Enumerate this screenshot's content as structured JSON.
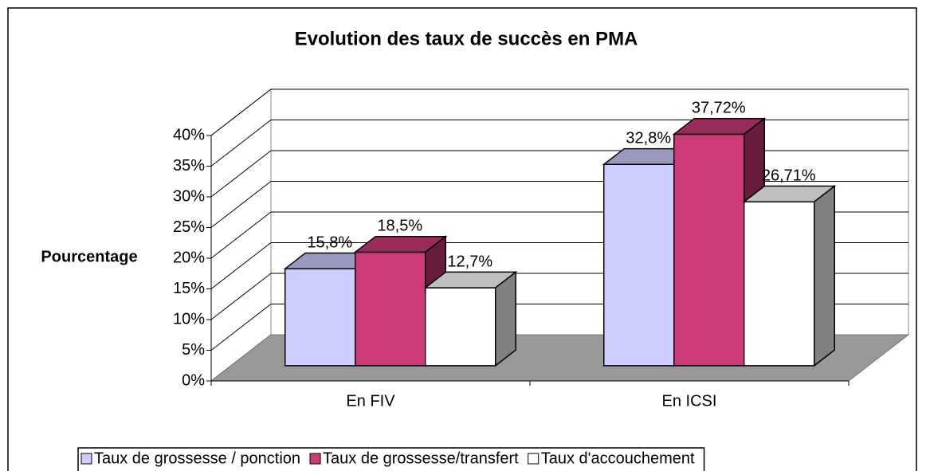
{
  "chart_data": {
    "type": "bar3d",
    "title": "Evolution des taux de succès en PMA",
    "ylabel": "Pourcentage",
    "categories": [
      "En FIV",
      "En ICSI"
    ],
    "series": [
      {
        "name": "Taux de grossesse / ponction",
        "color": "#ccccff",
        "values": [
          15.8,
          32.8
        ],
        "value_labels": [
          "15,8%",
          "32,8%"
        ]
      },
      {
        "name": "Taux de grossesse/transfert",
        "color": "#cc3a7a",
        "values": [
          18.5,
          37.72
        ],
        "value_labels": [
          "18,5%",
          "37,72%"
        ]
      },
      {
        "name": "Taux d'accouchement",
        "color": "#ffffff",
        "values": [
          12.7,
          26.71
        ],
        "value_labels": [
          "12,7%",
          "26,71%"
        ]
      }
    ],
    "ylim": [
      0,
      40
    ],
    "yticks": [
      {
        "value": 0,
        "label": "0%"
      },
      {
        "value": 5,
        "label": "5%"
      },
      {
        "value": 10,
        "label": "10%"
      },
      {
        "value": 15,
        "label": "15%"
      },
      {
        "value": 20,
        "label": "20%"
      },
      {
        "value": 25,
        "label": "25%"
      },
      {
        "value": 30,
        "label": "30%"
      },
      {
        "value": 35,
        "label": "35%"
      },
      {
        "value": 40,
        "label": "40%"
      }
    ],
    "grid": true,
    "legend": "bottom"
  }
}
